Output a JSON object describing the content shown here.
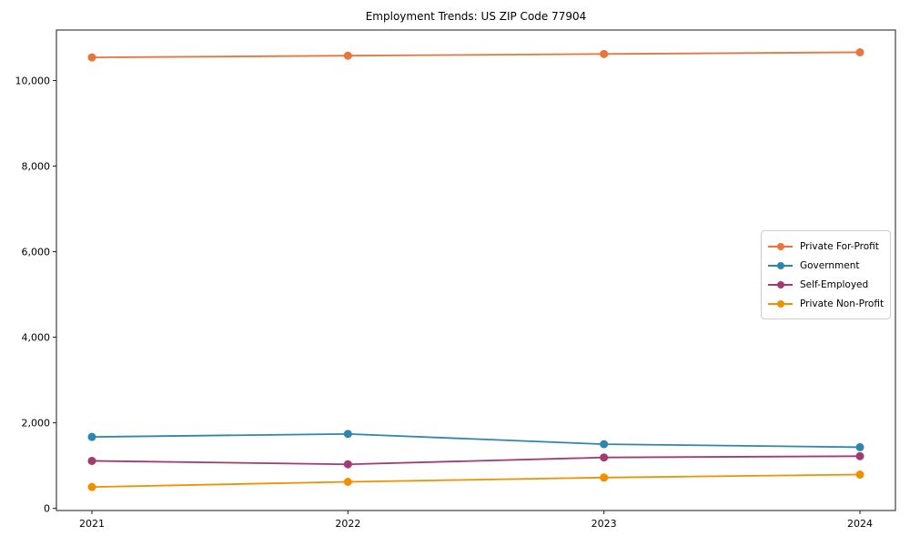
{
  "chart_data": {
    "type": "line",
    "title": "Employment Trends: US ZIP Code 77904",
    "xlabel": "",
    "ylabel": "",
    "x": [
      2021,
      2022,
      2023,
      2024
    ],
    "xtick_labels": [
      "2021",
      "2022",
      "2023",
      "2024"
    ],
    "yticks": [
      0,
      2000,
      4000,
      6000,
      8000,
      10000
    ],
    "ytick_labels": [
      "0",
      "2,000",
      "4,000",
      "6,000",
      "8,000",
      "10,000"
    ],
    "ylim": [
      -50,
      11180
    ],
    "grid": false,
    "legend_position": "center right",
    "series": [
      {
        "name": "Private For-Profit",
        "color": "#E8763C",
        "values": [
          10540,
          10580,
          10620,
          10660
        ]
      },
      {
        "name": "Government",
        "color": "#2E86AB",
        "values": [
          1670,
          1740,
          1500,
          1430
        ]
      },
      {
        "name": "Self-Employed",
        "color": "#A23B72",
        "values": [
          1110,
          1030,
          1190,
          1220
        ]
      },
      {
        "name": "Private Non-Profit",
        "color": "#F18F01",
        "values": [
          500,
          620,
          720,
          790
        ]
      }
    ],
    "axis_color": "#1a1a1a",
    "background_color": "#ffffff"
  }
}
